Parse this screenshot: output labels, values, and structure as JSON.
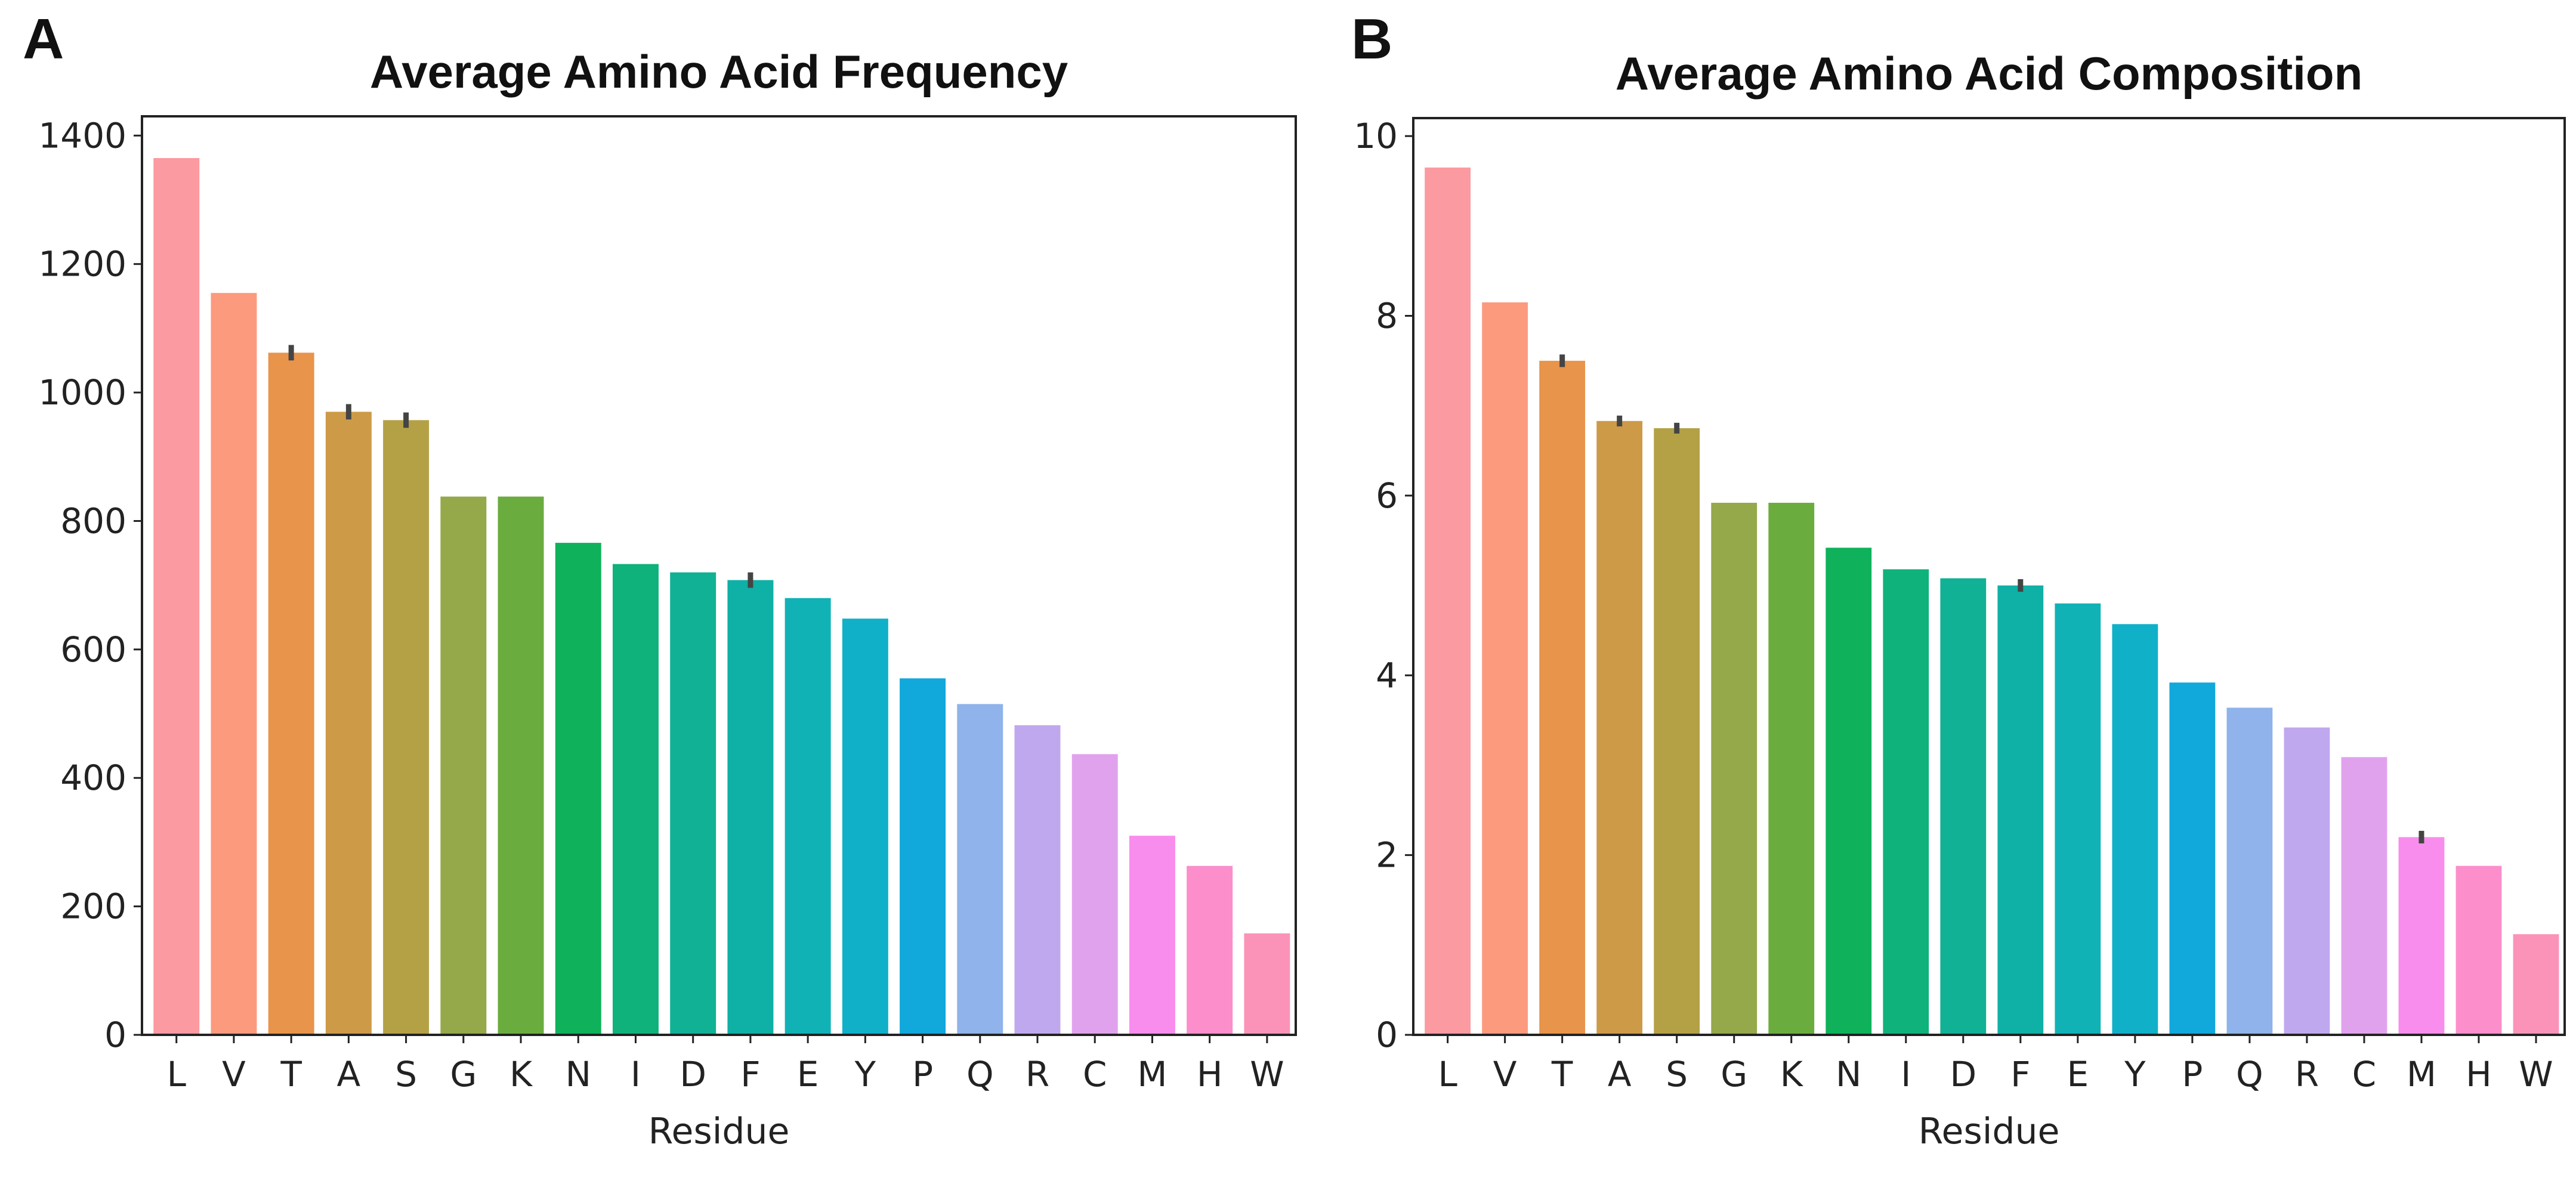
{
  "panels": [
    {
      "letter": "A",
      "chart_data": {
        "type": "bar",
        "title": "Average Amino Acid Frequency",
        "xlabel": "Residue",
        "ylabel": "",
        "ylim": [
          0,
          1430
        ],
        "yticks": [
          0,
          200,
          400,
          600,
          800,
          1000,
          1200,
          1400
        ],
        "categories": [
          "L",
          "V",
          "T",
          "A",
          "S",
          "G",
          "K",
          "N",
          "I",
          "D",
          "F",
          "E",
          "Y",
          "P",
          "Q",
          "R",
          "C",
          "M",
          "H",
          "W"
        ],
        "values": [
          1365,
          1155,
          1062,
          970,
          957,
          838,
          838,
          766,
          733,
          720,
          708,
          680,
          648,
          555,
          515,
          482,
          437,
          310,
          263,
          158
        ],
        "error_bars": [
          0,
          0,
          12,
          12,
          12,
          0,
          0,
          0,
          0,
          0,
          12,
          0,
          0,
          0,
          0,
          0,
          0,
          0,
          0,
          0
        ],
        "grid": false,
        "legend": "none"
      }
    },
    {
      "letter": "B",
      "chart_data": {
        "type": "bar",
        "title": "Average Amino Acid Composition",
        "xlabel": "Residue",
        "ylabel": "",
        "ylim": [
          0,
          10.2
        ],
        "yticks": [
          0,
          2,
          4,
          6,
          8,
          10
        ],
        "categories": [
          "L",
          "V",
          "T",
          "A",
          "S",
          "G",
          "K",
          "N",
          "I",
          "D",
          "F",
          "E",
          "Y",
          "P",
          "Q",
          "R",
          "C",
          "M",
          "H",
          "W"
        ],
        "values": [
          9.65,
          8.15,
          7.5,
          6.83,
          6.75,
          5.92,
          5.92,
          5.42,
          5.18,
          5.08,
          5.0,
          4.8,
          4.57,
          3.92,
          3.64,
          3.42,
          3.09,
          2.2,
          1.88,
          1.12
        ],
        "error_bars": [
          0,
          0,
          0.07,
          0.06,
          0.06,
          0,
          0,
          0,
          0,
          0,
          0.07,
          0,
          0,
          0,
          0,
          0,
          0,
          0.07,
          0,
          0
        ],
        "grid": false,
        "legend": "none"
      }
    }
  ],
  "colors": {
    "bars": [
      "#fb9aa0",
      "#fc9a7e",
      "#e8944b",
      "#cd9a48",
      "#b4a146",
      "#95a84a",
      "#6bac3e",
      "#0fb25a",
      "#0fb27a",
      "#11b195",
      "#0fb0a5",
      "#10b2b6",
      "#10b0c8",
      "#11a8dc",
      "#8fb3ea",
      "#c0a8ef",
      "#e0a2ed",
      "#f98ded",
      "#fb8ecb",
      "#fb93b8"
    ],
    "error_bar": "#444444",
    "axis": "#222222"
  }
}
